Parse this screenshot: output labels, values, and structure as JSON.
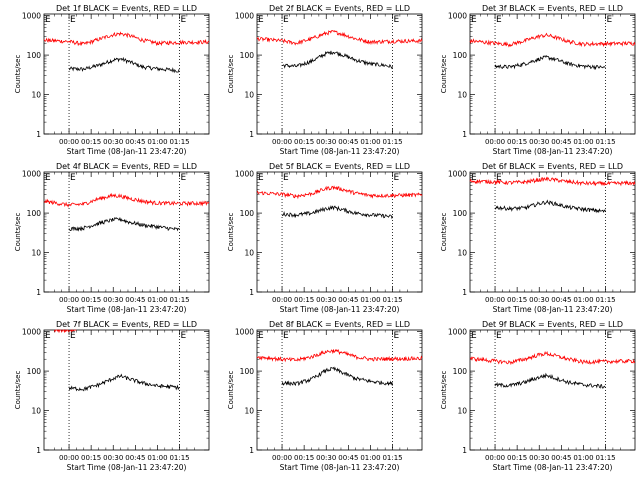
{
  "figure": {
    "ylabel": "Counts/sec",
    "xlabel": "Start Time (08-Jan-11 23:47:20)",
    "xticks": [
      "00:00",
      "00:15",
      "00:30",
      "00:45",
      "01:00",
      "01:15"
    ],
    "ytick_labels": [
      "1",
      "10",
      "100",
      "1000"
    ],
    "marker_label": "E",
    "colors": {
      "events": "#000000",
      "lld": "#ff0000",
      "axes": "#000000"
    }
  },
  "chart_data": [
    {
      "type": "line",
      "title": "Det 1f BLACK = Events, RED = LLD",
      "x_unit": "minutes after 00:00",
      "xlim": [
        -17,
        95
      ],
      "ylim": [
        1,
        1100
      ],
      "yscale": "log",
      "markers_x": [
        0,
        75
      ],
      "series": [
        {
          "name": "Events",
          "color": "black",
          "x": [
            0,
            10,
            20,
            30,
            35,
            40,
            50,
            60,
            70,
            75
          ],
          "y": [
            45,
            44,
            55,
            75,
            80,
            70,
            50,
            45,
            42,
            40
          ]
        },
        {
          "name": "LLD",
          "color": "red",
          "x": [
            -17,
            0,
            10,
            20,
            30,
            35,
            40,
            50,
            60,
            75,
            95
          ],
          "y": [
            240,
            220,
            190,
            250,
            330,
            350,
            320,
            240,
            200,
            210,
            215
          ]
        }
      ]
    },
    {
      "type": "line",
      "title": "Det 2f BLACK = Events, RED = LLD",
      "x_unit": "minutes after 00:00",
      "xlim": [
        -17,
        95
      ],
      "ylim": [
        1,
        1100
      ],
      "yscale": "log",
      "markers_x": [
        0,
        75
      ],
      "series": [
        {
          "name": "Events",
          "color": "black",
          "x": [
            0,
            10,
            20,
            30,
            35,
            40,
            50,
            60,
            70,
            75
          ],
          "y": [
            55,
            52,
            70,
            110,
            120,
            105,
            75,
            60,
            55,
            50
          ]
        },
        {
          "name": "LLD",
          "color": "red",
          "x": [
            -17,
            0,
            10,
            20,
            30,
            35,
            40,
            50,
            60,
            75,
            95
          ],
          "y": [
            260,
            230,
            200,
            260,
            360,
            390,
            350,
            260,
            215,
            225,
            230
          ]
        }
      ]
    },
    {
      "type": "line",
      "title": "Det 3f BLACK = Events, RED = LLD",
      "x_unit": "minutes after 00:00",
      "xlim": [
        -17,
        95
      ],
      "ylim": [
        1,
        1100
      ],
      "yscale": "log",
      "markers_x": [
        0,
        75
      ],
      "series": [
        {
          "name": "Events",
          "color": "black",
          "x": [
            0,
            10,
            20,
            30,
            35,
            40,
            50,
            60,
            70,
            75
          ],
          "y": [
            52,
            50,
            60,
            80,
            88,
            80,
            60,
            52,
            50,
            48
          ]
        },
        {
          "name": "LLD",
          "color": "red",
          "x": [
            -17,
            0,
            10,
            20,
            30,
            35,
            40,
            50,
            60,
            75,
            95
          ],
          "y": [
            230,
            200,
            185,
            230,
            300,
            320,
            290,
            220,
            190,
            195,
            200
          ]
        }
      ]
    },
    {
      "type": "line",
      "title": "Det 4f BLACK = Events, RED = LLD",
      "x_unit": "minutes after 00:00",
      "xlim": [
        -17,
        95
      ],
      "ylim": [
        1,
        1100
      ],
      "yscale": "log",
      "markers_x": [
        0,
        75
      ],
      "series": [
        {
          "name": "Events",
          "color": "black",
          "x": [
            0,
            10,
            20,
            30,
            35,
            40,
            50,
            60,
            70,
            75
          ],
          "y": [
            40,
            42,
            55,
            68,
            70,
            60,
            50,
            45,
            40,
            38
          ]
        },
        {
          "name": "LLD",
          "color": "red",
          "x": [
            -17,
            0,
            10,
            20,
            30,
            35,
            40,
            50,
            60,
            75,
            95
          ],
          "y": [
            200,
            160,
            170,
            230,
            280,
            270,
            240,
            200,
            180,
            175,
            180
          ]
        }
      ]
    },
    {
      "type": "line",
      "title": "Det 5f BLACK = Events, RED = LLD",
      "x_unit": "minutes after 00:00",
      "xlim": [
        -17,
        95
      ],
      "ylim": [
        1,
        1100
      ],
      "yscale": "log",
      "markers_x": [
        0,
        75
      ],
      "series": [
        {
          "name": "Events",
          "color": "black",
          "x": [
            0,
            10,
            20,
            30,
            35,
            40,
            50,
            60,
            70,
            75
          ],
          "y": [
            95,
            90,
            100,
            130,
            140,
            125,
            100,
            90,
            85,
            80
          ]
        },
        {
          "name": "LLD",
          "color": "red",
          "x": [
            -17,
            0,
            10,
            20,
            30,
            35,
            40,
            50,
            60,
            75,
            95
          ],
          "y": [
            330,
            300,
            270,
            310,
            420,
            450,
            410,
            320,
            280,
            280,
            290
          ]
        }
      ]
    },
    {
      "type": "line",
      "title": "Det 6f BLACK = Events, RED = LLD",
      "x_unit": "minutes after 00:00",
      "xlim": [
        -17,
        95
      ],
      "ylim": [
        1,
        1100
      ],
      "yscale": "log",
      "markers_x": [
        0,
        75
      ],
      "series": [
        {
          "name": "Events",
          "color": "black",
          "x": [
            0,
            10,
            20,
            30,
            35,
            40,
            50,
            60,
            70,
            75
          ],
          "y": [
            140,
            130,
            135,
            175,
            190,
            175,
            140,
            125,
            115,
            110
          ]
        },
        {
          "name": "LLD",
          "color": "red",
          "x": [
            -17,
            0,
            10,
            20,
            30,
            35,
            40,
            50,
            60,
            75,
            95
          ],
          "y": [
            650,
            620,
            590,
            610,
            700,
            730,
            700,
            620,
            570,
            560,
            580
          ]
        }
      ]
    },
    {
      "type": "line",
      "title": "Det 7f BLACK = Events, RED = LLD",
      "x_unit": "minutes after 00:00",
      "xlim": [
        -17,
        95
      ],
      "ylim": [
        1,
        1100
      ],
      "yscale": "log",
      "markers_x": [
        0,
        75
      ],
      "series": [
        {
          "name": "Events",
          "color": "black",
          "x": [
            0,
            10,
            20,
            30,
            35,
            40,
            50,
            60,
            70,
            75
          ],
          "y": [
            37,
            35,
            45,
            65,
            75,
            65,
            50,
            42,
            40,
            38
          ]
        },
        {
          "name": "LLD",
          "color": "red",
          "x": [
            -10,
            -5,
            0,
            5
          ],
          "y": [
            1050,
            1100,
            1080,
            1100
          ]
        }
      ]
    },
    {
      "type": "line",
      "title": "Det 8f BLACK = Events, RED = LLD",
      "x_unit": "minutes after 00:00",
      "xlim": [
        -17,
        95
      ],
      "ylim": [
        1,
        1100
      ],
      "yscale": "log",
      "markers_x": [
        0,
        75
      ],
      "series": [
        {
          "name": "Events",
          "color": "black",
          "x": [
            0,
            10,
            20,
            30,
            35,
            40,
            50,
            60,
            70,
            75
          ],
          "y": [
            50,
            48,
            62,
            105,
            115,
            95,
            65,
            55,
            50,
            48
          ]
        },
        {
          "name": "LLD",
          "color": "red",
          "x": [
            -17,
            0,
            10,
            20,
            30,
            35,
            40,
            50,
            60,
            75,
            95
          ],
          "y": [
            230,
            200,
            190,
            230,
            310,
            330,
            300,
            230,
            200,
            205,
            210
          ]
        }
      ]
    },
    {
      "type": "line",
      "title": "Det 9f BLACK = Events, RED = LLD",
      "x_unit": "minutes after 00:00",
      "xlim": [
        -17,
        95
      ],
      "ylim": [
        1,
        1100
      ],
      "yscale": "log",
      "markers_x": [
        0,
        75
      ],
      "series": [
        {
          "name": "Events",
          "color": "black",
          "x": [
            0,
            10,
            20,
            30,
            35,
            40,
            50,
            60,
            70,
            75
          ],
          "y": [
            45,
            43,
            52,
            70,
            78,
            68,
            52,
            45,
            42,
            40
          ]
        },
        {
          "name": "LLD",
          "color": "red",
          "x": [
            -17,
            0,
            10,
            20,
            30,
            35,
            40,
            50,
            60,
            75,
            95
          ],
          "y": [
            210,
            180,
            165,
            200,
            260,
            280,
            250,
            200,
            170,
            175,
            180
          ]
        }
      ]
    }
  ]
}
